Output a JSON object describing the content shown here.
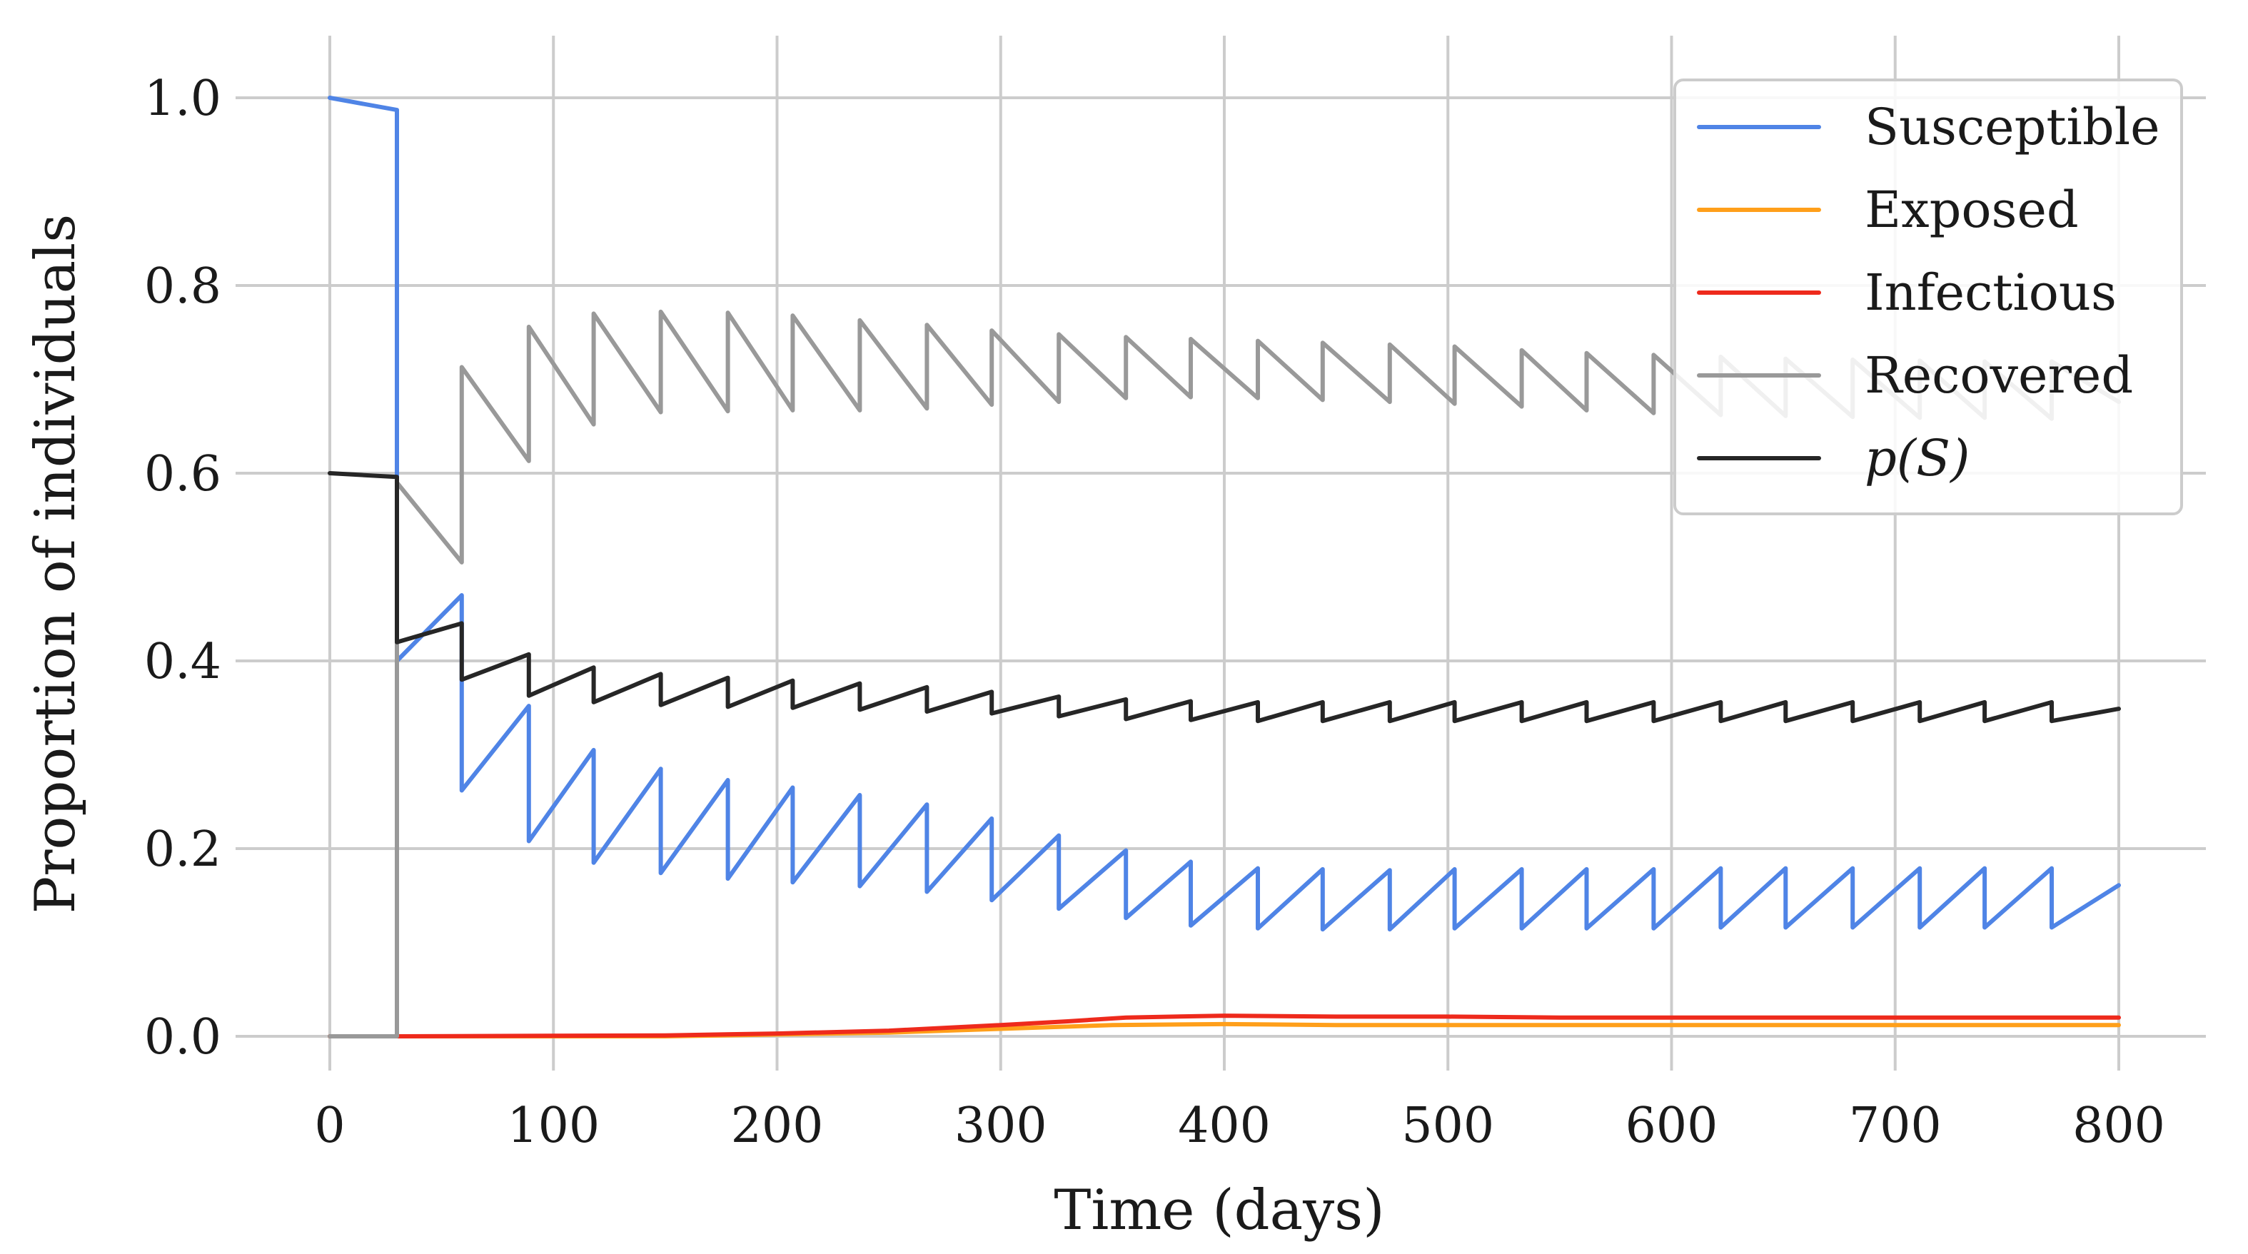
{
  "chart_data": {
    "type": "line",
    "title": "",
    "xlabel": "Time (days)",
    "ylabel": "Proportion of individuals",
    "xlim": [
      -35,
      835
    ],
    "ylim": [
      -0.04,
      1.07
    ],
    "xticks": [
      0,
      100,
      200,
      300,
      400,
      500,
      600,
      700,
      800
    ],
    "xtick_labels": [
      "0",
      "100",
      "200",
      "300",
      "400",
      "500",
      "600",
      "700",
      "800"
    ],
    "yticks": [
      0.0,
      0.2,
      0.4,
      0.6,
      0.8,
      1.0
    ],
    "ytick_labels": [
      "0.0",
      "0.2",
      "0.4",
      "0.6",
      "0.8",
      "1.0"
    ],
    "grid": true,
    "legend_position": "top-right",
    "series": [
      {
        "name": "Susceptible",
        "color": "#4f84e6",
        "points": [
          [
            0,
            1.0
          ],
          [
            30,
            0.987
          ],
          [
            30,
            0.4
          ],
          [
            59,
            0.47
          ],
          [
            59,
            0.262
          ],
          [
            89,
            0.352
          ],
          [
            89,
            0.208
          ],
          [
            118,
            0.305
          ],
          [
            118,
            0.185
          ],
          [
            148,
            0.285
          ],
          [
            148,
            0.174
          ],
          [
            178,
            0.273
          ],
          [
            178,
            0.168
          ],
          [
            207,
            0.265
          ],
          [
            207,
            0.164
          ],
          [
            237,
            0.257
          ],
          [
            237,
            0.16
          ],
          [
            267,
            0.247
          ],
          [
            267,
            0.154
          ],
          [
            296,
            0.232
          ],
          [
            296,
            0.145
          ],
          [
            326,
            0.214
          ],
          [
            326,
            0.136
          ],
          [
            356,
            0.198
          ],
          [
            356,
            0.126
          ],
          [
            385,
            0.186
          ],
          [
            385,
            0.118
          ],
          [
            415,
            0.179
          ],
          [
            415,
            0.115
          ],
          [
            444,
            0.178
          ],
          [
            444,
            0.114
          ],
          [
            474,
            0.177
          ],
          [
            474,
            0.114
          ],
          [
            503,
            0.178
          ],
          [
            503,
            0.115
          ],
          [
            533,
            0.178
          ],
          [
            533,
            0.115
          ],
          [
            562,
            0.178
          ],
          [
            562,
            0.115
          ],
          [
            592,
            0.178
          ],
          [
            592,
            0.115
          ],
          [
            622,
            0.179
          ],
          [
            622,
            0.116
          ],
          [
            651,
            0.179
          ],
          [
            651,
            0.116
          ],
          [
            681,
            0.179
          ],
          [
            681,
            0.116
          ],
          [
            711,
            0.179
          ],
          [
            711,
            0.116
          ],
          [
            740,
            0.179
          ],
          [
            740,
            0.116
          ],
          [
            770,
            0.179
          ],
          [
            770,
            0.116
          ],
          [
            800,
            0.161
          ]
        ]
      },
      {
        "name": "Exposed",
        "color": "#ff9f1a",
        "points": [
          [
            0,
            0.0
          ],
          [
            30,
            0.0
          ],
          [
            150,
            0.0
          ],
          [
            200,
            0.002
          ],
          [
            250,
            0.004
          ],
          [
            300,
            0.008
          ],
          [
            350,
            0.012
          ],
          [
            400,
            0.013
          ],
          [
            450,
            0.012
          ],
          [
            500,
            0.012
          ],
          [
            550,
            0.012
          ],
          [
            600,
            0.012
          ],
          [
            650,
            0.012
          ],
          [
            700,
            0.012
          ],
          [
            750,
            0.012
          ],
          [
            800,
            0.012
          ]
        ]
      },
      {
        "name": "Infectious",
        "color": "#ee2a1c",
        "points": [
          [
            0,
            0.0
          ],
          [
            30,
            0.0
          ],
          [
            150,
            0.001
          ],
          [
            200,
            0.003
          ],
          [
            250,
            0.006
          ],
          [
            300,
            0.012
          ],
          [
            330,
            0.016
          ],
          [
            356,
            0.02
          ],
          [
            400,
            0.022
          ],
          [
            450,
            0.021
          ],
          [
            500,
            0.021
          ],
          [
            550,
            0.02
          ],
          [
            600,
            0.02
          ],
          [
            650,
            0.02
          ],
          [
            700,
            0.02
          ],
          [
            750,
            0.02
          ],
          [
            800,
            0.02
          ]
        ]
      },
      {
        "name": "Recovered",
        "color": "#999999",
        "points": [
          [
            0,
            0.0
          ],
          [
            30,
            0.0
          ],
          [
            30,
            0.59
          ],
          [
            59,
            0.505
          ],
          [
            59,
            0.713
          ],
          [
            89,
            0.613
          ],
          [
            89,
            0.756
          ],
          [
            118,
            0.652
          ],
          [
            118,
            0.77
          ],
          [
            148,
            0.665
          ],
          [
            148,
            0.772
          ],
          [
            178,
            0.666
          ],
          [
            178,
            0.771
          ],
          [
            207,
            0.667
          ],
          [
            207,
            0.768
          ],
          [
            237,
            0.667
          ],
          [
            237,
            0.763
          ],
          [
            267,
            0.669
          ],
          [
            267,
            0.758
          ],
          [
            296,
            0.673
          ],
          [
            296,
            0.752
          ],
          [
            326,
            0.676
          ],
          [
            326,
            0.748
          ],
          [
            356,
            0.68
          ],
          [
            356,
            0.745
          ],
          [
            385,
            0.681
          ],
          [
            385,
            0.743
          ],
          [
            415,
            0.68
          ],
          [
            415,
            0.741
          ],
          [
            444,
            0.678
          ],
          [
            444,
            0.739
          ],
          [
            474,
            0.676
          ],
          [
            474,
            0.737
          ],
          [
            503,
            0.674
          ],
          [
            503,
            0.735
          ],
          [
            533,
            0.671
          ],
          [
            533,
            0.731
          ],
          [
            562,
            0.667
          ],
          [
            562,
            0.728
          ],
          [
            592,
            0.664
          ],
          [
            592,
            0.726
          ],
          [
            622,
            0.662
          ],
          [
            622,
            0.724
          ],
          [
            651,
            0.661
          ],
          [
            651,
            0.722
          ],
          [
            681,
            0.66
          ],
          [
            681,
            0.721
          ],
          [
            711,
            0.659
          ],
          [
            711,
            0.72
          ],
          [
            740,
            0.659
          ],
          [
            740,
            0.719
          ],
          [
            770,
            0.658
          ],
          [
            770,
            0.719
          ],
          [
            800,
            0.676
          ]
        ]
      },
      {
        "name": "p(S)",
        "color": "#262626",
        "points": [
          [
            0,
            0.6
          ],
          [
            30,
            0.596
          ],
          [
            30,
            0.42
          ],
          [
            59,
            0.44
          ],
          [
            59,
            0.38
          ],
          [
            89,
            0.407
          ],
          [
            89,
            0.363
          ],
          [
            118,
            0.393
          ],
          [
            118,
            0.356
          ],
          [
            148,
            0.386
          ],
          [
            148,
            0.353
          ],
          [
            178,
            0.382
          ],
          [
            178,
            0.351
          ],
          [
            207,
            0.379
          ],
          [
            207,
            0.35
          ],
          [
            237,
            0.376
          ],
          [
            237,
            0.348
          ],
          [
            267,
            0.372
          ],
          [
            267,
            0.346
          ],
          [
            296,
            0.367
          ],
          [
            296,
            0.344
          ],
          [
            326,
            0.362
          ],
          [
            326,
            0.341
          ],
          [
            356,
            0.359
          ],
          [
            356,
            0.338
          ],
          [
            385,
            0.357
          ],
          [
            385,
            0.337
          ],
          [
            415,
            0.356
          ],
          [
            415,
            0.336
          ],
          [
            444,
            0.356
          ],
          [
            444,
            0.336
          ],
          [
            474,
            0.356
          ],
          [
            474,
            0.336
          ],
          [
            503,
            0.356
          ],
          [
            503,
            0.336
          ],
          [
            533,
            0.356
          ],
          [
            533,
            0.336
          ],
          [
            562,
            0.356
          ],
          [
            562,
            0.336
          ],
          [
            592,
            0.356
          ],
          [
            592,
            0.336
          ],
          [
            622,
            0.356
          ],
          [
            622,
            0.336
          ],
          [
            651,
            0.356
          ],
          [
            651,
            0.336
          ],
          [
            681,
            0.356
          ],
          [
            681,
            0.336
          ],
          [
            711,
            0.356
          ],
          [
            711,
            0.336
          ],
          [
            740,
            0.356
          ],
          [
            740,
            0.336
          ],
          [
            770,
            0.356
          ],
          [
            770,
            0.336
          ],
          [
            800,
            0.349
          ]
        ]
      }
    ],
    "legend": [
      {
        "label": "Susceptible",
        "color": "#4f84e6",
        "italic": false
      },
      {
        "label": "Exposed",
        "color": "#ff9f1a",
        "italic": false
      },
      {
        "label": "Infectious",
        "color": "#ee2a1c",
        "italic": false
      },
      {
        "label": "Recovered",
        "color": "#999999",
        "italic": false
      },
      {
        "label": "p(S)",
        "color": "#262626",
        "italic": true
      }
    ]
  }
}
